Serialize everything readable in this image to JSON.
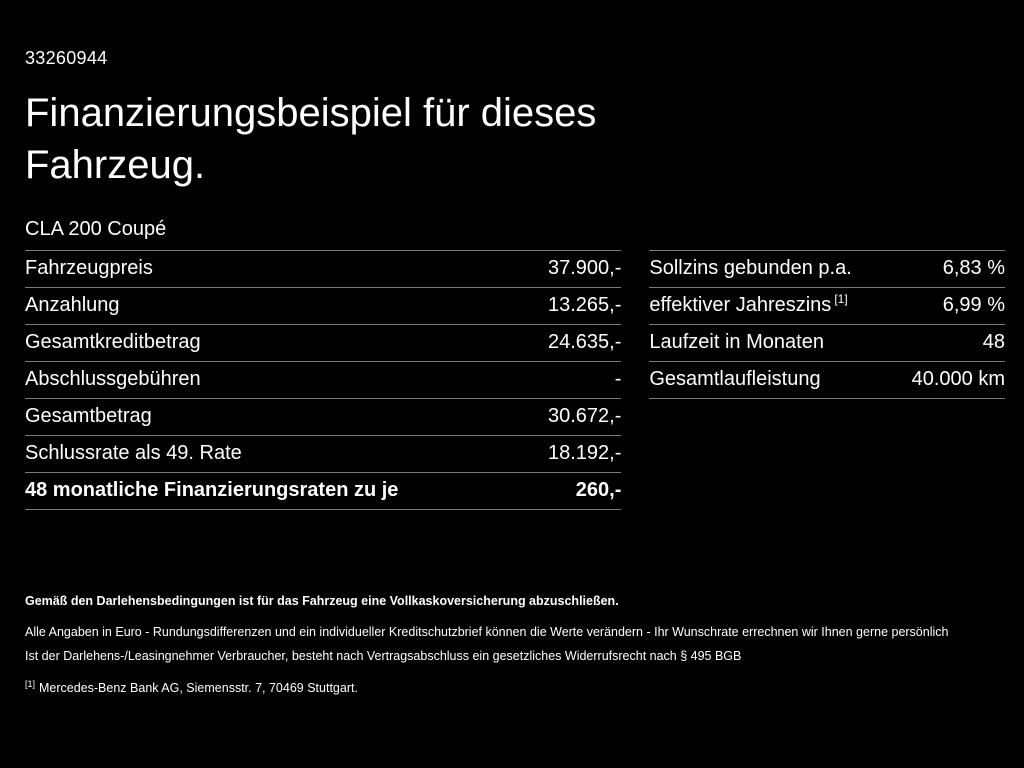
{
  "header": {
    "id": "33260944",
    "title": "Finanzierungsbeispiel für dieses Fahrzeug.",
    "model": "CLA 200 Coupé"
  },
  "financing_table": {
    "rows": [
      {
        "label": "Fahrzeugpreis",
        "value": "37.900,-"
      },
      {
        "label": "Anzahlung",
        "value": "13.265,-"
      },
      {
        "label": "Gesamtkreditbetrag",
        "value": "24.635,-"
      },
      {
        "label": "Abschlussgebühren",
        "value": "-"
      },
      {
        "label": "Gesamtbetrag",
        "value": "30.672,-"
      },
      {
        "label": "Schlussrate als 49. Rate",
        "value": "18.192,-"
      },
      {
        "label": "48 monatliche Finanzierungsraten zu je",
        "value": "260,-"
      }
    ]
  },
  "conditions_table": {
    "rows": [
      {
        "label": "Sollzins gebunden p.a.",
        "value": "6,83 %"
      },
      {
        "label": "effektiver Jahreszins",
        "footnote_ref": "[1]",
        "value": "6,99 %"
      },
      {
        "label": "Laufzeit in Monaten",
        "value": "48"
      },
      {
        "label": "Gesamtlaufleistung",
        "value": "40.000 km"
      }
    ]
  },
  "footer": {
    "insurance_note": "Gemäß den Darlehensbedingungen ist für das Fahrzeug eine Vollkaskoversicherung abzuschließen.",
    "disclaimer1": "Alle Angaben in Euro - Rundungsdifferenzen und ein individueller Kreditschutzbrief können die Werte verändern - Ihr Wunschrate errechnen wir Ihnen gerne persönlich",
    "disclaimer2": "Ist der Darlehens-/Leasingnehmer Verbraucher, besteht nach Vertragsabschluss ein gesetzliches Widerrufsrecht nach § 495 BGB",
    "footnote_marker": "[1]",
    "footnote_text": "Mercedes-Benz Bank AG, Siemensstr. 7, 70469 Stuttgart."
  },
  "colors": {
    "background": "#000000",
    "text": "#ffffff",
    "divider": "#7a7a7a"
  }
}
